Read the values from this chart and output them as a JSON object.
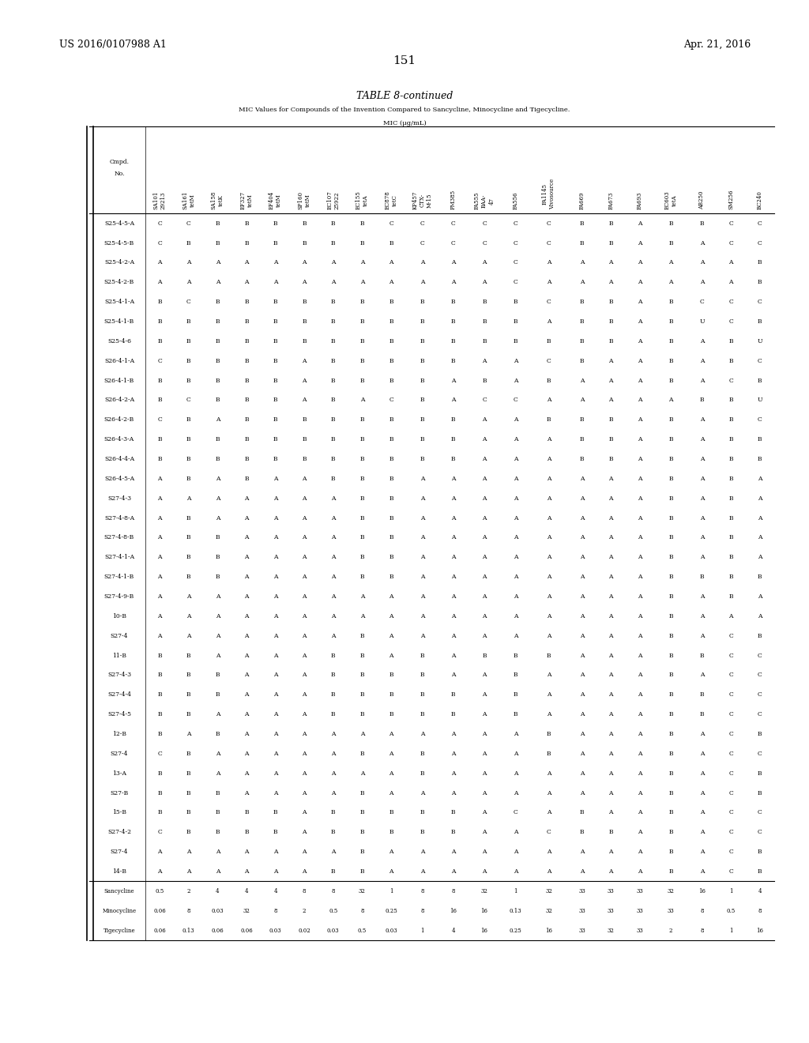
{
  "page_number": "151",
  "patent_left": "US 2016/0107988 A1",
  "patent_right": "Apr. 21, 2016",
  "table_title": "TABLE 8-continued",
  "table_subtitle": "MIC Values for Compounds of the Invention Compared to Sancycline, Minocycline and Tigecycline.",
  "mic_label": "MIC (μg/mL)",
  "col_headers_line1": [
    "Cmpd.\nNo.",
    "SA101\n29213",
    "SA161\ntetM",
    "SA158\ntetK",
    "EF327\ntetM",
    "EF404\ntetM",
    "SP160\ntetM",
    "EC107\n25922",
    "EC155\ntetA",
    "EC878\ntetC",
    "KP457\nCTX-\nM-15",
    "PM385",
    "PA555\nBAA-\n47",
    "PA556",
    "PA1145\nVivosource",
    "PA669",
    "PA673",
    "PA693",
    "EC603\ntetA",
    "AB250",
    "SM256",
    "BC240"
  ],
  "rows": [
    [
      "S25-4-5-A",
      "C",
      "C",
      "B",
      "B",
      "B",
      "B",
      "B",
      "B",
      "C",
      "C",
      "C",
      "C",
      "C",
      "C",
      "B",
      "B",
      "A",
      "B",
      "B",
      "C",
      "C"
    ],
    [
      "S25-4-5-B",
      "C",
      "B",
      "B",
      "B",
      "B",
      "B",
      "B",
      "B",
      "B",
      "C",
      "C",
      "C",
      "C",
      "C",
      "B",
      "B",
      "A",
      "B",
      "A",
      "C",
      "C"
    ],
    [
      "S25-4-2-A",
      "A",
      "A",
      "A",
      "A",
      "A",
      "A",
      "A",
      "A",
      "A",
      "A",
      "A",
      "A",
      "C",
      "A",
      "A",
      "A",
      "A",
      "A",
      "A",
      "A",
      "B"
    ],
    [
      "S25-4-2-B",
      "A",
      "A",
      "A",
      "A",
      "A",
      "A",
      "A",
      "A",
      "A",
      "A",
      "A",
      "A",
      "C",
      "A",
      "A",
      "A",
      "A",
      "A",
      "A",
      "A",
      "B"
    ],
    [
      "S25-4-1-A",
      "B",
      "C",
      "B",
      "B",
      "B",
      "B",
      "B",
      "B",
      "B",
      "B",
      "B",
      "B",
      "B",
      "C",
      "B",
      "B",
      "A",
      "B",
      "C",
      "C",
      "C"
    ],
    [
      "S25-4-1-B",
      "B",
      "B",
      "B",
      "B",
      "B",
      "B",
      "B",
      "B",
      "B",
      "B",
      "B",
      "B",
      "B",
      "A",
      "B",
      "B",
      "A",
      "B",
      "U",
      "C",
      "B"
    ],
    [
      "S25-4-6",
      "B",
      "B",
      "B",
      "B",
      "B",
      "B",
      "B",
      "B",
      "B",
      "B",
      "B",
      "B",
      "B",
      "B",
      "B",
      "B",
      "A",
      "B",
      "A",
      "B",
      "U"
    ],
    [
      "S26-4-1-A",
      "C",
      "B",
      "B",
      "B",
      "B",
      "A",
      "B",
      "B",
      "B",
      "B",
      "B",
      "A",
      "A",
      "C",
      "B",
      "A",
      "A",
      "B",
      "A",
      "B",
      "C"
    ],
    [
      "S26-4-1-B",
      "B",
      "B",
      "B",
      "B",
      "B",
      "A",
      "B",
      "B",
      "B",
      "B",
      "A",
      "B",
      "A",
      "B",
      "A",
      "A",
      "A",
      "B",
      "A",
      "C",
      "B"
    ],
    [
      "S26-4-2-A",
      "B",
      "C",
      "B",
      "B",
      "B",
      "A",
      "B",
      "A",
      "C",
      "B",
      "A",
      "C",
      "C",
      "A",
      "A",
      "A",
      "A",
      "A",
      "B",
      "B",
      "U"
    ],
    [
      "S26-4-2-B",
      "C",
      "B",
      "A",
      "B",
      "B",
      "B",
      "B",
      "B",
      "B",
      "B",
      "B",
      "A",
      "A",
      "B",
      "B",
      "B",
      "A",
      "B",
      "A",
      "B",
      "C"
    ],
    [
      "S26-4-3-A",
      "B",
      "B",
      "B",
      "B",
      "B",
      "B",
      "B",
      "B",
      "B",
      "B",
      "B",
      "A",
      "A",
      "A",
      "B",
      "B",
      "A",
      "B",
      "A",
      "B",
      "B"
    ],
    [
      "S26-4-4-A",
      "B",
      "B",
      "B",
      "B",
      "B",
      "B",
      "B",
      "B",
      "B",
      "B",
      "B",
      "A",
      "A",
      "A",
      "B",
      "B",
      "A",
      "B",
      "A",
      "B",
      "B"
    ],
    [
      "S26-4-5-A",
      "A",
      "B",
      "A",
      "B",
      "A",
      "A",
      "B",
      "B",
      "B",
      "A",
      "A",
      "A",
      "A",
      "A",
      "A",
      "A",
      "A",
      "B",
      "A",
      "B",
      "A"
    ],
    [
      "S27-4-3",
      "A",
      "A",
      "A",
      "A",
      "A",
      "A",
      "A",
      "B",
      "B",
      "A",
      "A",
      "A",
      "A",
      "A",
      "A",
      "A",
      "A",
      "B",
      "A",
      "B",
      "A"
    ],
    [
      "S27-4-8-A",
      "A",
      "B",
      "A",
      "A",
      "A",
      "A",
      "A",
      "B",
      "B",
      "A",
      "A",
      "A",
      "A",
      "A",
      "A",
      "A",
      "A",
      "B",
      "A",
      "B",
      "A"
    ],
    [
      "S27-4-8-B",
      "A",
      "B",
      "B",
      "A",
      "A",
      "A",
      "A",
      "B",
      "B",
      "A",
      "A",
      "A",
      "A",
      "A",
      "A",
      "A",
      "A",
      "B",
      "A",
      "B",
      "A"
    ],
    [
      "S27-4-1-A",
      "A",
      "B",
      "B",
      "A",
      "A",
      "A",
      "A",
      "B",
      "B",
      "A",
      "A",
      "A",
      "A",
      "A",
      "A",
      "A",
      "A",
      "B",
      "A",
      "B",
      "A"
    ],
    [
      "S27-4-1-B",
      "A",
      "B",
      "B",
      "A",
      "A",
      "A",
      "A",
      "B",
      "B",
      "A",
      "A",
      "A",
      "A",
      "A",
      "A",
      "A",
      "A",
      "B",
      "B",
      "B",
      "B"
    ],
    [
      "S27-4-9-B",
      "A",
      "A",
      "A",
      "A",
      "A",
      "A",
      "A",
      "A",
      "A",
      "A",
      "A",
      "A",
      "A",
      "A",
      "A",
      "A",
      "A",
      "B",
      "A",
      "B",
      "A"
    ],
    [
      "10-B",
      "A",
      "A",
      "A",
      "A",
      "A",
      "A",
      "A",
      "A",
      "A",
      "A",
      "A",
      "A",
      "A",
      "A",
      "A",
      "A",
      "A",
      "B",
      "A",
      "A",
      "A"
    ],
    [
      "S27-4",
      "A",
      "A",
      "A",
      "A",
      "A",
      "A",
      "A",
      "B",
      "A",
      "A",
      "A",
      "A",
      "A",
      "A",
      "A",
      "A",
      "A",
      "B",
      "A",
      "C",
      "B"
    ],
    [
      "11-B",
      "B",
      "B",
      "A",
      "A",
      "A",
      "A",
      "B",
      "B",
      "A",
      "B",
      "A",
      "B",
      "B",
      "B",
      "A",
      "A",
      "A",
      "B",
      "B",
      "C",
      "C"
    ],
    [
      "S27-4-3",
      "B",
      "B",
      "B",
      "A",
      "A",
      "A",
      "B",
      "B",
      "B",
      "B",
      "A",
      "A",
      "B",
      "A",
      "A",
      "A",
      "A",
      "B",
      "A",
      "C",
      "C"
    ],
    [
      "S27-4-4",
      "B",
      "B",
      "B",
      "A",
      "A",
      "A",
      "B",
      "B",
      "B",
      "B",
      "B",
      "A",
      "B",
      "A",
      "A",
      "A",
      "A",
      "B",
      "B",
      "C",
      "C"
    ],
    [
      "S27-4-5",
      "B",
      "B",
      "A",
      "A",
      "A",
      "A",
      "B",
      "B",
      "B",
      "B",
      "B",
      "A",
      "B",
      "A",
      "A",
      "A",
      "A",
      "B",
      "B",
      "C",
      "C"
    ],
    [
      "12-B",
      "B",
      "A",
      "B",
      "A",
      "A",
      "A",
      "A",
      "A",
      "A",
      "A",
      "A",
      "A",
      "A",
      "B",
      "A",
      "A",
      "A",
      "B",
      "A",
      "C",
      "B"
    ],
    [
      "S27-4",
      "C",
      "B",
      "A",
      "A",
      "A",
      "A",
      "A",
      "B",
      "A",
      "B",
      "A",
      "A",
      "A",
      "B",
      "A",
      "A",
      "A",
      "B",
      "A",
      "C",
      "C"
    ],
    [
      "13-A",
      "B",
      "B",
      "A",
      "A",
      "A",
      "A",
      "A",
      "A",
      "A",
      "B",
      "A",
      "A",
      "A",
      "A",
      "A",
      "A",
      "A",
      "B",
      "A",
      "C",
      "B"
    ],
    [
      "S27-B",
      "B",
      "B",
      "B",
      "A",
      "A",
      "A",
      "A",
      "B",
      "A",
      "A",
      "A",
      "A",
      "A",
      "A",
      "A",
      "A",
      "A",
      "B",
      "A",
      "C",
      "B"
    ],
    [
      "15-B",
      "B",
      "B",
      "B",
      "B",
      "B",
      "A",
      "B",
      "B",
      "B",
      "B",
      "B",
      "A",
      "C",
      "A",
      "B",
      "A",
      "A",
      "B",
      "A",
      "C",
      "C"
    ],
    [
      "S27-4-2",
      "C",
      "B",
      "B",
      "B",
      "B",
      "A",
      "B",
      "B",
      "B",
      "B",
      "B",
      "A",
      "A",
      "C",
      "B",
      "B",
      "A",
      "B",
      "A",
      "C",
      "C"
    ],
    [
      "S27-4",
      "A",
      "A",
      "A",
      "A",
      "A",
      "A",
      "A",
      "B",
      "A",
      "A",
      "A",
      "A",
      "A",
      "A",
      "A",
      "A",
      "A",
      "B",
      "A",
      "C",
      "B"
    ],
    [
      "14-B",
      "A",
      "A",
      "A",
      "A",
      "A",
      "A",
      "B",
      "B",
      "A",
      "A",
      "A",
      "A",
      "A",
      "A",
      "A",
      "A",
      "A",
      "B",
      "A",
      "C",
      "B"
    ],
    [
      "Sancycline",
      "0.5",
      "2",
      "4",
      "4",
      "4",
      "8",
      "8",
      "32",
      "1",
      "8",
      "8",
      "32",
      "1",
      "32",
      "33",
      "33",
      "33",
      "32",
      "16",
      "1",
      "4"
    ],
    [
      "Minocycline",
      "0.06",
      "8",
      "0.03",
      "32",
      "8",
      "2",
      "0.5",
      "8",
      "0.25",
      "8",
      "16",
      "16",
      "0.13",
      "32",
      "33",
      "33",
      "33",
      "33",
      "8",
      "0.5",
      "8"
    ],
    [
      "Tigecycline",
      "0.06",
      "0.13",
      "0.06",
      "0.06",
      "0.03",
      "0.02",
      "0.03",
      "0.5",
      "0.03",
      "1",
      "4",
      "16",
      "0.25",
      "16",
      "33",
      "32",
      "33",
      "2",
      "8",
      "1",
      "16"
    ]
  ],
  "background_color": "#ffffff",
  "font_size_header": 5.5,
  "font_size_body": 5.5,
  "font_size_title": 9,
  "font_size_patent": 9
}
